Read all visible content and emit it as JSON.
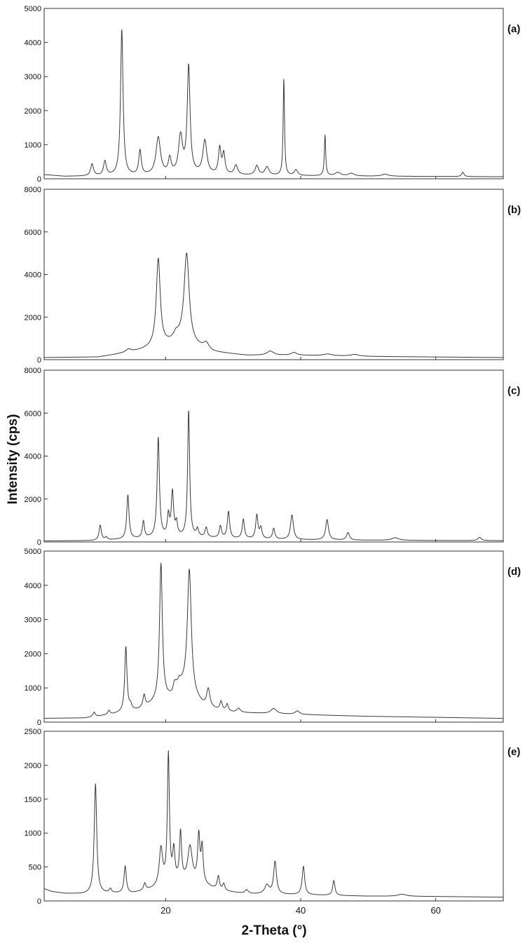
{
  "ylabel": "Intensity (cps)",
  "xlabel": "2-Theta (°)",
  "x_ticks": [
    "20",
    "40",
    "60"
  ],
  "chart_data": [
    {
      "type": "line",
      "label": "(a)",
      "xlim": [
        2,
        70
      ],
      "ylim": [
        0,
        5000
      ],
      "y_ticks": [
        "0",
        "1000",
        "2000",
        "3000",
        "4000",
        "5000"
      ],
      "baseline": [
        [
          2,
          120
        ],
        [
          5,
          70
        ],
        [
          15,
          80
        ],
        [
          25,
          120
        ],
        [
          35,
          90
        ],
        [
          50,
          75
        ],
        [
          70,
          60
        ]
      ],
      "peaks": [
        [
          9.1,
          350,
          0.25
        ],
        [
          11.0,
          420,
          0.25
        ],
        [
          13.5,
          4300,
          0.22
        ],
        [
          16.2,
          720,
          0.22
        ],
        [
          18.9,
          1100,
          0.4
        ],
        [
          20.6,
          450,
          0.25
        ],
        [
          22.2,
          1100,
          0.35
        ],
        [
          23.4,
          3150,
          0.25
        ],
        [
          25.8,
          980,
          0.35
        ],
        [
          28.0,
          760,
          0.22
        ],
        [
          28.6,
          600,
          0.22
        ],
        [
          30.4,
          280,
          0.3
        ],
        [
          33.5,
          280,
          0.3
        ],
        [
          35.0,
          250,
          0.35
        ],
        [
          37.5,
          2850,
          0.12
        ],
        [
          39.3,
          170,
          0.3
        ],
        [
          43.6,
          1200,
          0.12
        ],
        [
          45.5,
          100,
          0.5
        ],
        [
          47.5,
          80,
          0.5
        ],
        [
          52.5,
          60,
          0.6
        ],
        [
          64.0,
          130,
          0.2
        ]
      ]
    },
    {
      "type": "line",
      "label": "(b)",
      "xlim": [
        2,
        70
      ],
      "ylim": [
        0,
        8000
      ],
      "y_ticks": [
        "0",
        "2000",
        "4000",
        "6000",
        "8000"
      ],
      "baseline": [
        [
          2,
          100
        ],
        [
          10,
          120
        ],
        [
          15,
          350
        ],
        [
          18,
          550
        ],
        [
          20,
          700
        ],
        [
          22,
          900
        ],
        [
          24,
          650
        ],
        [
          27,
          350
        ],
        [
          32,
          200
        ],
        [
          40,
          200
        ],
        [
          50,
          150
        ],
        [
          70,
          100
        ]
      ],
      "peaks": [
        [
          14.5,
          150,
          0.5
        ],
        [
          18.9,
          4100,
          0.35
        ],
        [
          21.5,
          250,
          0.4
        ],
        [
          23.1,
          4200,
          0.45
        ],
        [
          26.0,
          300,
          0.5
        ],
        [
          35.5,
          200,
          0.6
        ],
        [
          39.0,
          130,
          0.5
        ],
        [
          44.0,
          80,
          0.8
        ],
        [
          48.0,
          80,
          0.8
        ]
      ]
    },
    {
      "type": "line",
      "label": "(c)",
      "xlim": [
        2,
        70
      ],
      "ylim": [
        0,
        8000
      ],
      "y_ticks": [
        "0",
        "2000",
        "4000",
        "6000",
        "8000"
      ],
      "baseline": [
        [
          2,
          50
        ],
        [
          9,
          60
        ],
        [
          14,
          120
        ],
        [
          20,
          220
        ],
        [
          24,
          220
        ],
        [
          30,
          150
        ],
        [
          40,
          100
        ],
        [
          50,
          80
        ],
        [
          70,
          60
        ]
      ],
      "peaks": [
        [
          10.3,
          700,
          0.2
        ],
        [
          11.2,
          120,
          0.2
        ],
        [
          14.4,
          2050,
          0.2
        ],
        [
          16.7,
          780,
          0.18
        ],
        [
          18.9,
          4650,
          0.2
        ],
        [
          20.4,
          950,
          0.18
        ],
        [
          21.0,
          2050,
          0.2
        ],
        [
          21.6,
          600,
          0.18
        ],
        [
          23.4,
          5900,
          0.18
        ],
        [
          24.7,
          350,
          0.2
        ],
        [
          26.0,
          450,
          0.2
        ],
        [
          28.1,
          550,
          0.2
        ],
        [
          29.3,
          1250,
          0.2
        ],
        [
          31.5,
          900,
          0.2
        ],
        [
          33.5,
          1100,
          0.2
        ],
        [
          34.1,
          500,
          0.2
        ],
        [
          36.0,
          500,
          0.2
        ],
        [
          38.7,
          1150,
          0.25
        ],
        [
          43.9,
          950,
          0.25
        ],
        [
          47.0,
          350,
          0.25
        ],
        [
          54.0,
          120,
          0.6
        ],
        [
          66.5,
          150,
          0.3
        ]
      ]
    },
    {
      "type": "line",
      "label": "(d)",
      "xlim": [
        2,
        70
      ],
      "ylim": [
        0,
        5000
      ],
      "y_ticks": [
        "0",
        "1000",
        "2000",
        "3000",
        "4000",
        "5000"
      ],
      "baseline": [
        [
          2,
          110
        ],
        [
          8,
          120
        ],
        [
          12,
          220
        ],
        [
          16,
          350
        ],
        [
          19,
          600
        ],
        [
          21,
          700
        ],
        [
          22,
          1100
        ],
        [
          24,
          700
        ],
        [
          26,
          400
        ],
        [
          30,
          280
        ],
        [
          40,
          220
        ],
        [
          50,
          170
        ],
        [
          70,
          110
        ]
      ],
      "peaks": [
        [
          9.4,
          130,
          0.2
        ],
        [
          11.6,
          120,
          0.2
        ],
        [
          14.1,
          1900,
          0.2
        ],
        [
          14.8,
          150,
          0.2
        ],
        [
          16.8,
          350,
          0.2
        ],
        [
          19.3,
          4000,
          0.25
        ],
        [
          21.3,
          250,
          0.3
        ],
        [
          23.5,
          3650,
          0.35
        ],
        [
          26.3,
          550,
          0.3
        ],
        [
          28.2,
          250,
          0.2
        ],
        [
          29.1,
          200,
          0.2
        ],
        [
          30.8,
          120,
          0.3
        ],
        [
          36.0,
          150,
          0.5
        ],
        [
          39.5,
          100,
          0.4
        ]
      ]
    },
    {
      "type": "line",
      "label": "(e)",
      "xlim": [
        2,
        70
      ],
      "ylim": [
        0,
        2500
      ],
      "y_ticks": [
        "0",
        "500",
        "1000",
        "1500",
        "2000",
        "2500"
      ],
      "baseline": [
        [
          2,
          180
        ],
        [
          3,
          140
        ],
        [
          5,
          110
        ],
        [
          8,
          100
        ],
        [
          12,
          110
        ],
        [
          15,
          110
        ],
        [
          18,
          170
        ],
        [
          20,
          220
        ],
        [
          22,
          280
        ],
        [
          25,
          250
        ],
        [
          28,
          150
        ],
        [
          32,
          100
        ],
        [
          40,
          90
        ],
        [
          50,
          70
        ],
        [
          60,
          65
        ],
        [
          70,
          55
        ]
      ],
      "peaks": [
        [
          9.6,
          1620,
          0.22
        ],
        [
          11.8,
          60,
          0.2
        ],
        [
          14.0,
          400,
          0.2
        ],
        [
          16.9,
          100,
          0.2
        ],
        [
          19.3,
          550,
          0.3
        ],
        [
          20.4,
          1900,
          0.18
        ],
        [
          21.2,
          450,
          0.2
        ],
        [
          22.2,
          700,
          0.18
        ],
        [
          23.6,
          520,
          0.4
        ],
        [
          24.9,
          680,
          0.2
        ],
        [
          25.4,
          520,
          0.18
        ],
        [
          27.8,
          200,
          0.2
        ],
        [
          28.6,
          100,
          0.2
        ],
        [
          32.0,
          60,
          0.3
        ],
        [
          35.0,
          130,
          0.4
        ],
        [
          36.2,
          480,
          0.25
        ],
        [
          40.4,
          420,
          0.22
        ],
        [
          44.9,
          220,
          0.2
        ],
        [
          55.0,
          30,
          0.8
        ]
      ]
    }
  ]
}
